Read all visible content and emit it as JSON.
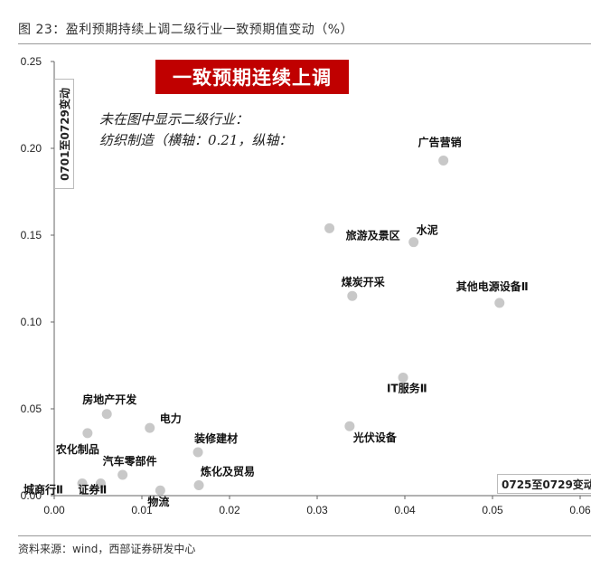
{
  "figure_title": "图 23：盈利预期持续上调二级行业一致预期值变动（%）",
  "source": "资料来源：wind，西部证券研发中心",
  "banner": "一致预期连续上调",
  "note_line1": "未在图中显示二级行业：",
  "note_line2": "纺织制造（横轴：0.21，纵轴：",
  "colors": {
    "banner_bg": "#c00000",
    "point": "#c8c8c8"
  },
  "chart_data": {
    "type": "scatter",
    "xlabel": "0725至0729变动",
    "ylabel": "0701至0729变动",
    "xlim": [
      0,
      0.06
    ],
    "ylim": [
      0,
      0.25
    ],
    "xticks": [
      "0.00",
      "0.01",
      "0.02",
      "0.03",
      "0.04",
      "0.05",
      "0.06"
    ],
    "yticks": [
      "0.00",
      "0.05",
      "0.10",
      "0.15",
      "0.20",
      "0.25"
    ],
    "points": [
      {
        "label": "广告营销",
        "x": 0.0444,
        "y": 0.193
      },
      {
        "label": "旅游及景区",
        "x": 0.0314,
        "y": 0.154
      },
      {
        "label": "水泥",
        "x": 0.041,
        "y": 0.146
      },
      {
        "label": "煤炭开采",
        "x": 0.034,
        "y": 0.115
      },
      {
        "label": "其他电源设备Ⅱ",
        "x": 0.0508,
        "y": 0.111
      },
      {
        "label": "IT服务Ⅱ",
        "x": 0.0398,
        "y": 0.068
      },
      {
        "label": "光伏设备",
        "x": 0.0337,
        "y": 0.04
      },
      {
        "label": "房地产开发",
        "x": 0.006,
        "y": 0.047
      },
      {
        "label": "电力",
        "x": 0.0109,
        "y": 0.039
      },
      {
        "label": "农化制品",
        "x": 0.0038,
        "y": 0.036
      },
      {
        "label": "装修建材",
        "x": 0.0164,
        "y": 0.025
      },
      {
        "label": "汽车零部件",
        "x": 0.0078,
        "y": 0.012
      },
      {
        "label": "炼化及贸易",
        "x": 0.0165,
        "y": 0.006
      },
      {
        "label": "城商行Ⅱ",
        "x": 0.0032,
        "y": 0.007
      },
      {
        "label": "证券Ⅱ",
        "x": 0.0053,
        "y": 0.007
      },
      {
        "label": "物流",
        "x": 0.0121,
        "y": 0.003
      }
    ]
  }
}
